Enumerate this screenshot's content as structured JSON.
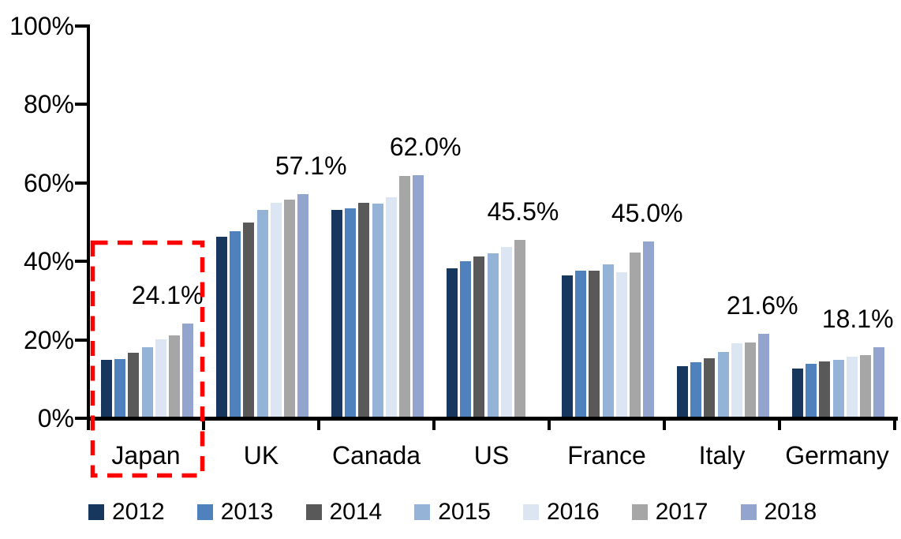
{
  "chart_data": {
    "type": "bar",
    "title": "",
    "xlabel": "",
    "ylabel": "",
    "grid": "off",
    "categories": [
      "Japan",
      "UK",
      "Canada",
      "US",
      "France",
      "Italy",
      "Germany"
    ],
    "series": [
      {
        "name": "2012",
        "color": "#17375E",
        "values": [
          14.8,
          46.3,
          53.1,
          38.3,
          36.5,
          13.3,
          12.6
        ]
      },
      {
        "name": "2013",
        "color": "#4F81BD",
        "values": [
          15.0,
          47.7,
          53.5,
          40.0,
          37.7,
          14.2,
          13.9
        ]
      },
      {
        "name": "2014",
        "color": "#595959",
        "values": [
          16.7,
          49.9,
          55.0,
          41.2,
          37.6,
          15.3,
          14.4
        ]
      },
      {
        "name": "2015",
        "color": "#95B3D7",
        "values": [
          18.2,
          53.1,
          54.8,
          42.1,
          39.2,
          16.9,
          14.8
        ]
      },
      {
        "name": "2016",
        "color": "#DCE6F2",
        "values": [
          20.2,
          54.9,
          56.3,
          43.7,
          37.3,
          19.2,
          15.6
        ]
      },
      {
        "name": "2017",
        "color": "#A6A6A6",
        "values": [
          21.2,
          55.7,
          61.7,
          45.5,
          42.3,
          19.4,
          16.1
        ]
      },
      {
        "name": "2018",
        "color": "#93A5CE",
        "values": [
          24.1,
          57.1,
          62.0,
          null,
          45.0,
          21.6,
          18.1
        ]
      }
    ],
    "y_axis": {
      "range": [
        0,
        100
      ],
      "ticks": [
        {
          "label": "0%",
          "value": 0
        },
        {
          "label": "20%",
          "value": 20
        },
        {
          "label": "40%",
          "value": 40
        },
        {
          "label": "60%",
          "value": 60
        },
        {
          "label": "80%",
          "value": 80
        },
        {
          "label": "100%",
          "value": 100
        }
      ]
    },
    "data_labels": [
      "24.1%",
      "57.1%",
      "62.0%",
      "45.5%",
      "45.0%",
      "21.6%",
      "18.1%"
    ],
    "label_x_offsets": [
      -26,
      10,
      9,
      4,
      -2,
      -2,
      -27
    ],
    "legend": {
      "position": "bottom",
      "items": [
        "2012",
        "2013",
        "2014",
        "2015",
        "2016",
        "2017",
        "2018"
      ]
    },
    "highlight": {
      "shape": "dashed-rectangle",
      "color": "#FF0000",
      "category": "Japan"
    }
  }
}
